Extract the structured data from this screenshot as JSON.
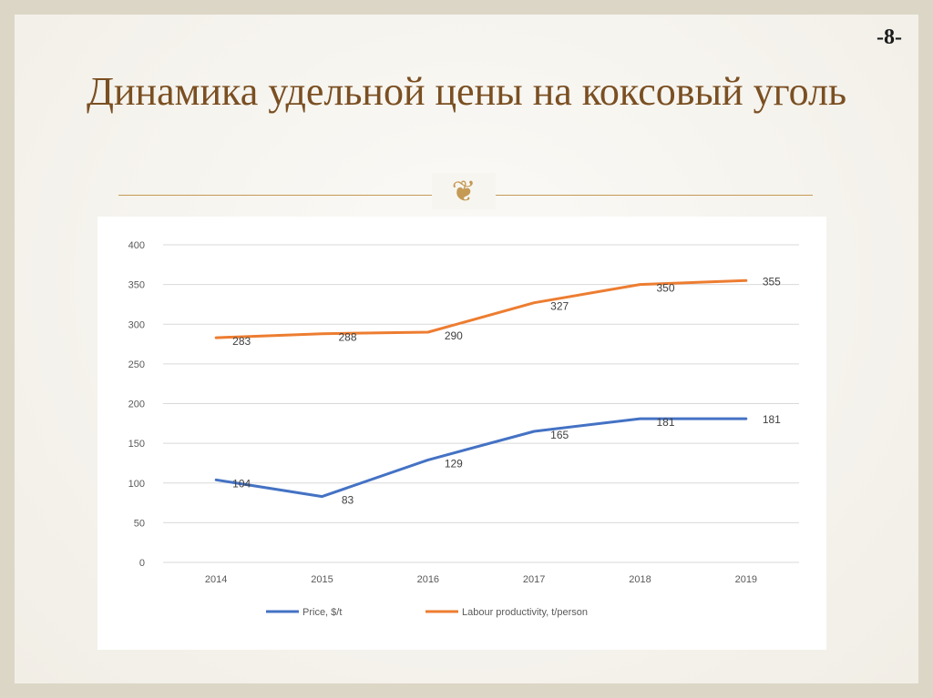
{
  "page_number": "-8-",
  "title": "Динамика удельной цены на коксовый уголь",
  "ornament_icon": "scroll-ornament-icon",
  "colors": {
    "title": "#7a4f22",
    "accent": "#c49a55",
    "price_series": "#4472c4",
    "productivity_series": "#ed7d31"
  },
  "chart_data": {
    "type": "line",
    "title": "",
    "xlabel": "",
    "ylabel": "",
    "x": [
      "2014",
      "2015",
      "2016",
      "2017",
      "2018",
      "2019"
    ],
    "ylim": [
      0,
      400
    ],
    "yticks": [
      0,
      50,
      100,
      150,
      200,
      250,
      300,
      350,
      400
    ],
    "grid": true,
    "legend_position": "bottom",
    "series": [
      {
        "name": "Price, $/t",
        "values": [
          104,
          83,
          129,
          165,
          181,
          181
        ],
        "color": "#4472c4"
      },
      {
        "name": "Labour productivity, t/person",
        "values": [
          283,
          288,
          290,
          327,
          350,
          355
        ],
        "color": "#ed7d31"
      }
    ]
  }
}
